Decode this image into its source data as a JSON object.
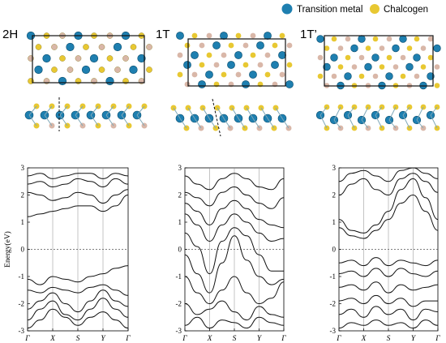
{
  "legend": {
    "metal_label": "Transition metal",
    "chalcogen_label": "Chalcogen",
    "metal_color": "#1e7fb0",
    "chalcogen_color": "#e8c832",
    "chalcogen_light_color": "#d9b7a8"
  },
  "structures": [
    {
      "phase": "2H"
    },
    {
      "phase": "1T"
    },
    {
      "phase": "1T’"
    }
  ],
  "axis": {
    "ylabel": "Energy(eV)",
    "yticks": [
      "3",
      "2",
      "1",
      "0",
      "-1",
      "-2",
      "-3"
    ]
  },
  "chart_data": [
    {
      "type": "line",
      "title": "",
      "ylabel": "Energy(eV)",
      "ylim": [
        -3,
        3
      ],
      "kpath": [
        "Γ",
        "X",
        "S",
        "Y",
        "Γ"
      ],
      "kpos": [
        0,
        0.5,
        1.0,
        1.5,
        2.0
      ],
      "fermi_level": 0,
      "series": [
        {
          "x": [
            0,
            0.25,
            0.5,
            0.75,
            1.0,
            1.25,
            1.5,
            1.75,
            2.0
          ],
          "y": [
            -2.9,
            -2.6,
            -2.2,
            -2.5,
            -2.8,
            -2.5,
            -2.3,
            -2.6,
            -2.9
          ]
        },
        {
          "x": [
            0,
            0.25,
            0.5,
            0.75,
            1.0,
            1.25,
            1.5,
            1.75,
            2.0
          ],
          "y": [
            -2.6,
            -2.2,
            -1.9,
            -2.4,
            -2.6,
            -2.2,
            -1.8,
            -2.2,
            -2.5
          ]
        },
        {
          "x": [
            0,
            0.25,
            0.5,
            0.75,
            1.0,
            1.25,
            1.5,
            1.75,
            2.0
          ],
          "y": [
            -2.2,
            -1.9,
            -1.6,
            -2.0,
            -2.3,
            -1.9,
            -1.5,
            -1.9,
            -2.1
          ]
        },
        {
          "x": [
            0,
            0.25,
            0.5,
            0.75,
            1.0,
            1.25,
            1.5,
            1.75,
            2.0
          ],
          "y": [
            -1.5,
            -1.6,
            -1.4,
            -1.5,
            -1.6,
            -1.4,
            -1.3,
            -1.5,
            -1.7
          ]
        },
        {
          "x": [
            0,
            0.25,
            0.5,
            0.75,
            1.0,
            1.25,
            1.5,
            1.75,
            2.0
          ],
          "y": [
            -1.1,
            -1.3,
            -1.0,
            -1.1,
            -1.2,
            -1.0,
            -0.9,
            -0.7,
            -0.6
          ]
        },
        {
          "x": [
            0,
            0.25,
            0.5,
            0.75,
            1.0,
            1.25,
            1.5,
            1.75,
            2.0
          ],
          "y": [
            1.2,
            1.3,
            1.4,
            1.5,
            1.6,
            1.6,
            1.4,
            1.6,
            2.0
          ]
        },
        {
          "x": [
            0,
            0.25,
            0.5,
            0.75,
            1.0,
            1.25,
            1.5,
            1.75,
            2.0
          ],
          "y": [
            2.1,
            2.0,
            1.8,
            1.9,
            2.1,
            2.0,
            1.7,
            2.0,
            2.2
          ]
        },
        {
          "x": [
            0,
            0.25,
            0.5,
            0.75,
            1.0,
            1.25,
            1.5,
            1.75,
            2.0
          ],
          "y": [
            2.4,
            2.5,
            2.3,
            2.4,
            2.6,
            2.5,
            2.3,
            2.6,
            2.4
          ]
        },
        {
          "x": [
            0,
            0.25,
            0.5,
            0.75,
            1.0,
            1.25,
            1.5,
            1.75,
            2.0
          ],
          "y": [
            2.7,
            2.8,
            2.6,
            2.7,
            2.8,
            2.8,
            2.6,
            2.8,
            2.7
          ]
        }
      ]
    },
    {
      "type": "line",
      "title": "",
      "ylabel": "",
      "ylim": [
        -3,
        3
      ],
      "kpath": [
        "Γ",
        "X",
        "S",
        "Y",
        "Γ"
      ],
      "kpos": [
        0,
        0.5,
        1.0,
        1.5,
        2.0
      ],
      "fermi_level": 0,
      "series": [
        {
          "x": [
            0,
            0.25,
            0.5,
            0.75,
            1.0,
            1.25,
            1.5,
            1.75,
            2.0
          ],
          "y": [
            -2.8,
            -2.5,
            -2.9,
            -2.6,
            -2.7,
            -2.9,
            -2.5,
            -2.7,
            -2.8
          ]
        },
        {
          "x": [
            0,
            0.25,
            0.5,
            0.75,
            1.0,
            1.25,
            1.5,
            1.75,
            2.0
          ],
          "y": [
            -2.0,
            -2.4,
            -2.2,
            -1.9,
            -2.3,
            -2.6,
            -2.1,
            -2.4,
            -2.5
          ]
        },
        {
          "x": [
            0,
            0.25,
            0.5,
            0.75,
            1.0,
            1.25,
            1.5,
            1.75,
            2.0
          ],
          "y": [
            -1.0,
            -1.6,
            -2.0,
            -1.5,
            -1.0,
            -1.6,
            -2.0,
            -1.8,
            -1.2
          ]
        },
        {
          "x": [
            0,
            0.25,
            0.5,
            0.75,
            1.0,
            1.25,
            1.5,
            1.75,
            2.0
          ],
          "y": [
            -0.2,
            -0.9,
            -1.6,
            -0.5,
            0.5,
            -0.4,
            -1.0,
            -1.3,
            -1.1
          ]
        },
        {
          "x": [
            0,
            0.25,
            0.5,
            0.75,
            1.0,
            1.25,
            1.5,
            1.75,
            2.0
          ],
          "y": [
            0.6,
            0.1,
            -0.9,
            0.3,
            0.8,
            0.5,
            -0.2,
            -0.8,
            -0.8
          ]
        },
        {
          "x": [
            0,
            0.25,
            0.5,
            0.75,
            1.0,
            1.25,
            1.5,
            1.75,
            2.0
          ],
          "y": [
            1.3,
            0.9,
            0.3,
            0.9,
            1.3,
            1.0,
            0.6,
            0.3,
            0.4
          ]
        },
        {
          "x": [
            0,
            0.25,
            0.5,
            0.75,
            1.0,
            1.25,
            1.5,
            1.75,
            2.0
          ],
          "y": [
            1.7,
            1.4,
            0.9,
            1.5,
            1.8,
            1.5,
            1.1,
            0.9,
            0.8
          ]
        },
        {
          "x": [
            0,
            0.25,
            0.5,
            0.75,
            1.0,
            1.25,
            1.5,
            1.75,
            2.0
          ],
          "y": [
            2.1,
            1.9,
            1.6,
            2.1,
            2.3,
            2.0,
            1.7,
            1.5,
            1.9
          ]
        },
        {
          "x": [
            0,
            0.25,
            0.5,
            0.75,
            1.0,
            1.25,
            1.5,
            1.75,
            2.0
          ],
          "y": [
            2.7,
            2.4,
            2.2,
            2.6,
            2.8,
            2.6,
            2.3,
            2.2,
            2.6
          ]
        }
      ]
    },
    {
      "type": "line",
      "title": "",
      "ylabel": "",
      "ylim": [
        -3,
        3
      ],
      "kpath": [
        "Γ",
        "X",
        "S",
        "Y",
        "Γ"
      ],
      "kpos": [
        0,
        0.5,
        1.0,
        1.5,
        2.0
      ],
      "fermi_level": 0,
      "series": [
        {
          "x": [
            0,
            0.25,
            0.5,
            0.75,
            1.0,
            1.25,
            1.5,
            1.75,
            2.0
          ],
          "y": [
            -2.9,
            -2.7,
            -2.8,
            -2.6,
            -2.8,
            -2.7,
            -2.9,
            -2.6,
            -2.8
          ]
        },
        {
          "x": [
            0,
            0.25,
            0.5,
            0.75,
            1.0,
            1.25,
            1.5,
            1.75,
            2.0
          ],
          "y": [
            -2.4,
            -2.2,
            -2.5,
            -2.1,
            -2.4,
            -2.2,
            -2.6,
            -2.2,
            -2.3
          ]
        },
        {
          "x": [
            0,
            0.25,
            0.5,
            0.75,
            1.0,
            1.25,
            1.5,
            1.75,
            2.0
          ],
          "y": [
            -1.9,
            -1.8,
            -2.0,
            -1.7,
            -2.0,
            -1.8,
            -2.1,
            -1.9,
            -1.9
          ]
        },
        {
          "x": [
            0,
            0.25,
            0.5,
            0.75,
            1.0,
            1.25,
            1.5,
            1.75,
            2.0
          ],
          "y": [
            -1.4,
            -1.3,
            -1.5,
            -1.2,
            -1.6,
            -1.3,
            -1.5,
            -1.4,
            -1.3
          ]
        },
        {
          "x": [
            0,
            0.25,
            0.5,
            0.75,
            1.0,
            1.25,
            1.5,
            1.75,
            2.0
          ],
          "y": [
            -0.9,
            -0.8,
            -1.0,
            -0.7,
            -1.0,
            -0.7,
            -0.9,
            -1.0,
            -0.8
          ]
        },
        {
          "x": [
            0,
            0.25,
            0.5,
            0.75,
            1.0,
            1.25,
            1.5,
            1.75,
            2.0
          ],
          "y": [
            -0.5,
            -0.4,
            -0.6,
            -0.3,
            -0.6,
            -0.4,
            -0.5,
            -0.6,
            -0.4
          ]
        },
        {
          "x": [
            0,
            0.25,
            0.5,
            0.75,
            1.0,
            1.25,
            1.5,
            1.75,
            2.0
          ],
          "y": [
            0.8,
            0.5,
            0.4,
            0.7,
            1.1,
            1.7,
            2.0,
            1.4,
            0.7
          ]
        },
        {
          "x": [
            0,
            0.25,
            0.5,
            0.75,
            1.0,
            1.25,
            1.5,
            1.75,
            2.0
          ],
          "y": [
            1.1,
            0.7,
            0.6,
            0.9,
            1.4,
            2.2,
            2.6,
            1.9,
            1.1
          ]
        },
        {
          "x": [
            0,
            0.25,
            0.5,
            0.75,
            1.0,
            1.25,
            1.5,
            1.75,
            2.0
          ],
          "y": [
            2.0,
            2.4,
            2.6,
            2.2,
            2.0,
            2.6,
            2.8,
            2.5,
            2.1
          ]
        },
        {
          "x": [
            0,
            0.25,
            0.5,
            0.75,
            1.0,
            1.25,
            1.5,
            1.75,
            2.0
          ],
          "y": [
            2.5,
            2.8,
            2.9,
            2.7,
            2.5,
            2.9,
            3.0,
            2.8,
            2.6
          ]
        }
      ]
    }
  ]
}
